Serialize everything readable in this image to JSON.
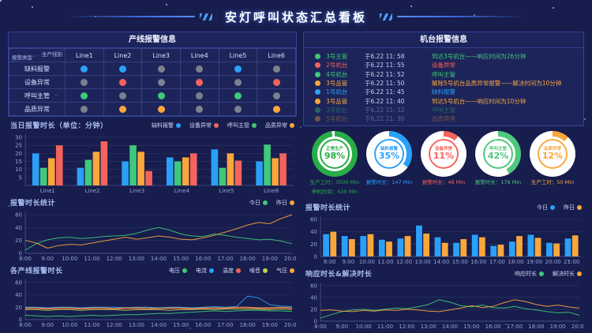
{
  "header": {
    "title": "安灯呼叫状态汇总看板"
  },
  "palette": {
    "blue": "#2ba0f8",
    "red": "#f4635c",
    "green": "#3fc97b",
    "orange": "#f9a63b",
    "gray": "#7c818f",
    "yellow": "#c3d24b",
    "background": "#171d4d",
    "panel_border": "#33439b"
  },
  "line_table": {
    "title": "产线报警信息",
    "corner_top": "生产线别",
    "corner_bottom": "报警类型",
    "columns": [
      "Line1",
      "Line2",
      "Line3",
      "Line4",
      "Line5",
      "Line6"
    ],
    "rows": [
      {
        "label": "缺料报警",
        "dots": [
          "blue",
          "blue",
          "gray",
          "gray",
          "blue",
          "gray"
        ]
      },
      {
        "label": "设备异常",
        "dots": [
          "gray",
          "red",
          "gray",
          "red",
          "gray",
          "red"
        ]
      },
      {
        "label": "呼叫主管",
        "dots": [
          "green",
          "gray",
          "green",
          "gray",
          "green",
          "gray"
        ]
      },
      {
        "label": "品质异常",
        "dots": [
          "gray",
          "orange",
          "orange",
          "gray",
          "gray",
          "orange"
        ]
      }
    ]
  },
  "machine_panel": {
    "title": "机台报警信息",
    "rows": [
      {
        "color": "green",
        "name": "3号主管",
        "time": "于6.22 11: 58",
        "message": "到达3号机台——响应时间为26分钟",
        "faded": false
      },
      {
        "color": "red",
        "name": "2号机台",
        "time": "于6.22 11: 55",
        "message": "设备异常",
        "faded": false
      },
      {
        "color": "green",
        "name": "4号机台",
        "time": "于6.22 11: 52",
        "message": "呼叫主管",
        "faded": false
      },
      {
        "color": "orange",
        "name": "3号品管",
        "time": "于6.22 11: 50",
        "message": "解除5号机台品质异常报警——解决时间为10分钟",
        "faded": false
      },
      {
        "color": "blue",
        "name": "1号机台",
        "time": "于6.22 11: 45",
        "message": "缺料报警",
        "faded": false
      },
      {
        "color": "orange",
        "name": "3号品管",
        "time": "于6.22 11: 40",
        "message": "到达5号机台——响应时间为10分钟",
        "faded": false
      },
      {
        "color": "green",
        "name": "3号机台",
        "time": "于6.22 11: 32",
        "message": "呼叫主管",
        "faded": true
      },
      {
        "color": "orange",
        "name": "5号机台",
        "time": "于6.22 11: 30",
        "message": "品质异常",
        "faded": true
      }
    ]
  },
  "donuts": [
    {
      "label": "正常生产",
      "percent": 98,
      "color": "#29ad49",
      "captions": [
        "生产工时：3500 Min",
        "停机时间：430 Min"
      ]
    },
    {
      "label": "缺料报警",
      "percent": 35,
      "color": "#2ba0f8",
      "captions": [
        "报警时长：147 Min"
      ]
    },
    {
      "label": "设备异常",
      "percent": 11,
      "color": "#f4635c",
      "captions": [
        "报警时长：46 Min"
      ]
    },
    {
      "label": "呼叫主管",
      "percent": 42,
      "color": "#4ec87c",
      "captions": [
        "报警时长：176 Min"
      ]
    },
    {
      "label": "品质异常",
      "percent": 12,
      "color": "#f9a63b",
      "captions": [
        "生产工时：50 Min"
      ]
    }
  ],
  "chart_data": [
    {
      "type": "bar",
      "title": "当日报警时长（单位：分钟）",
      "categories": [
        "Line1",
        "Line2",
        "Line3",
        "Line4",
        "Line5",
        "Line6"
      ],
      "series": [
        {
          "name": "缺料报警",
          "color": "#2ba0f8",
          "values": [
            20,
            11,
            15,
            17.5,
            22.5,
            15
          ]
        },
        {
          "name": "呼叫主管",
          "color": "#3fc97b",
          "values": [
            11,
            16,
            25,
            15,
            11,
            25.5
          ]
        },
        {
          "name": "品质异常",
          "color": "#f9a63b",
          "values": [
            17,
            21,
            21,
            17.5,
            20,
            17
          ]
        },
        {
          "name": "设备异常",
          "color": "#f4635c",
          "values": [
            25,
            27.5,
            9,
            20,
            15.5,
            20
          ]
        }
      ],
      "legend": [
        "缺料报警",
        "设备异常",
        "呼叫主管",
        "品质异常"
      ],
      "ylim": [
        0,
        32
      ],
      "yticks": [
        5,
        10,
        15,
        20,
        25,
        30
      ],
      "grid": false,
      "legend_position": "top-right"
    },
    {
      "type": "line",
      "title": "报警时长统计",
      "x_labels": [
        "8:00",
        "9:00",
        "10:00",
        "11:00",
        "12:00",
        "13:00",
        "14:00",
        "15:00",
        "16:00",
        "17:00",
        "18:00",
        "19:00",
        "20:00"
      ],
      "series": [
        {
          "name": "今日",
          "color": "#3fc97b",
          "values": [
            5,
            15,
            21,
            24,
            25,
            23,
            24,
            26,
            27,
            28,
            31,
            36,
            40,
            36,
            30,
            27,
            26,
            30,
            28,
            25,
            23,
            21,
            22,
            19,
            15
          ]
        },
        {
          "name": "昨日",
          "color": "#f9a63b",
          "values": [
            20,
            16,
            8,
            12,
            14,
            13,
            16,
            19,
            22,
            25,
            22,
            24,
            27,
            25,
            22,
            21,
            24,
            28,
            33,
            38,
            44,
            48,
            46,
            54,
            60
          ]
        }
      ],
      "ylim": [
        0,
        65
      ],
      "yticks": [
        0,
        20,
        40,
        60
      ],
      "grid": true,
      "legend_position": "top-right"
    },
    {
      "type": "line",
      "title": "各产线报警时长",
      "x_labels": [
        "8:00",
        "9:00",
        "10:00",
        "11:00",
        "12:00",
        "13:00",
        "14:00",
        "15:00",
        "16:00",
        "17:00",
        "18:00",
        "19:00",
        "20:00"
      ],
      "series": [
        {
          "name": "电压",
          "color": "#3fc97b",
          "values": [
            7,
            6,
            5,
            6,
            5,
            6,
            7,
            6,
            7,
            8,
            8,
            9,
            10,
            10,
            11,
            12,
            13,
            14,
            13,
            14,
            15,
            15,
            14,
            14,
            13
          ]
        },
        {
          "name": "电流",
          "color": "#2ba0f8",
          "values": [
            20,
            20,
            19,
            20,
            20,
            19,
            20,
            20,
            20,
            19,
            20,
            20,
            19,
            20,
            20,
            19,
            20,
            21,
            20,
            21,
            38,
            35,
            24,
            22,
            21
          ]
        },
        {
          "name": "温度",
          "color": "#f4635c",
          "values": [
            18,
            18,
            17,
            18,
            18,
            17,
            18,
            18,
            17,
            18,
            18,
            17,
            18,
            18,
            18,
            17,
            18,
            18,
            18,
            19,
            19,
            18,
            18,
            19,
            18
          ]
        },
        {
          "name": "噪音",
          "color": "#c3d24b",
          "values": [
            16,
            16,
            15,
            16,
            16,
            15,
            16,
            16,
            16,
            15,
            16,
            16,
            16,
            15,
            16,
            16,
            17,
            16,
            17,
            17,
            17,
            17,
            16,
            17,
            16
          ]
        },
        {
          "name": "气压",
          "color": "#f9a63b",
          "values": [
            19,
            19,
            18,
            19,
            19,
            18,
            19,
            19,
            18,
            19,
            19,
            19,
            18,
            19,
            19,
            18,
            19,
            19,
            19,
            20,
            20,
            19,
            19,
            20,
            19
          ]
        }
      ],
      "ylim": [
        0,
        65
      ],
      "yticks": [
        0,
        20,
        40,
        60
      ],
      "grid": true,
      "legend_position": "top-right"
    },
    {
      "type": "bar",
      "title": "报警时长统计",
      "categories": [
        "8:00",
        "9:00",
        "10:00",
        "11:00",
        "12:00",
        "13:00",
        "14:00",
        "15:00",
        "16:00",
        "17:00",
        "18:00",
        "19:00",
        "20:00",
        "21:00"
      ],
      "series": [
        {
          "name": "今日",
          "color": "#2ba0f8",
          "values": [
            36,
            33,
            33,
            27,
            29,
            50,
            31,
            22,
            35,
            17,
            24,
            35,
            22,
            29
          ]
        },
        {
          "name": "昨日",
          "color": "#f9a63b",
          "values": [
            40,
            28,
            36,
            24,
            33,
            37,
            22,
            28,
            31,
            19,
            33,
            30,
            21,
            34
          ]
        }
      ],
      "ylim": [
        0,
        65
      ],
      "yticks": [
        0,
        20,
        40,
        60
      ],
      "grid": true,
      "legend_position": "top-right"
    },
    {
      "type": "line",
      "title": "响应时长&解决时长",
      "x_labels": [
        "8:00",
        "9:00",
        "10:00",
        "11:00",
        "12:00",
        "13:00",
        "14:00",
        "15:00",
        "16:00",
        "17:00",
        "18:00",
        "19:00",
        "20:00"
      ],
      "series": [
        {
          "name": "响应时长",
          "color": "#3fc97b",
          "values": [
            5,
            11,
            16,
            19,
            20,
            18,
            20,
            22,
            21,
            24,
            28,
            36,
            32,
            26,
            24,
            27,
            23,
            22,
            25,
            21,
            19,
            16,
            14,
            15,
            10
          ]
        },
        {
          "name": "解决时长",
          "color": "#f9a63b",
          "values": [
            18,
            19,
            17,
            16,
            18,
            17,
            19,
            18,
            20,
            19,
            17,
            16,
            19,
            22,
            26,
            23,
            25,
            31,
            36,
            33,
            28,
            25,
            27,
            24,
            22
          ]
        }
      ],
      "ylim": [
        0,
        65
      ],
      "yticks": [
        0,
        20,
        40,
        60
      ],
      "grid": true,
      "legend_position": "top-right"
    }
  ]
}
